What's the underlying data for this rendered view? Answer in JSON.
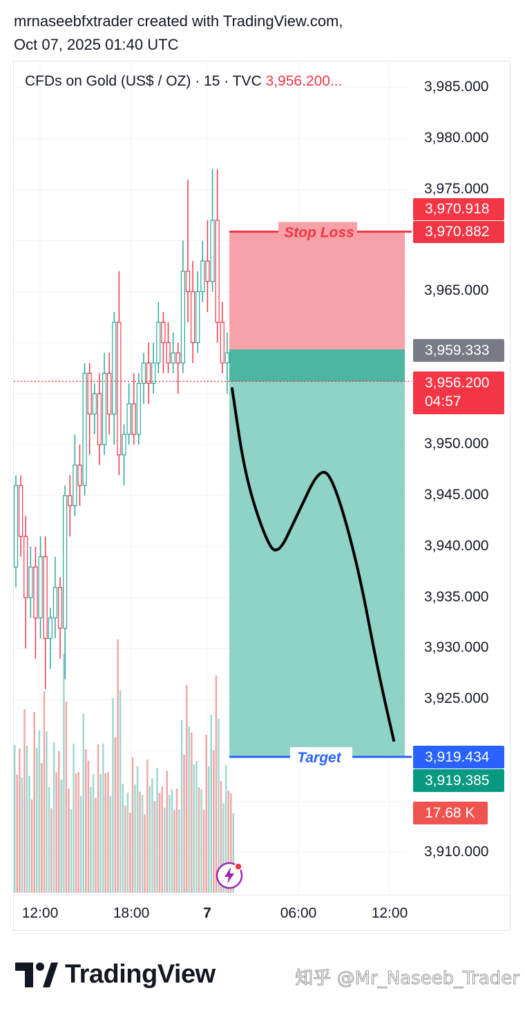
{
  "header": {
    "line1": "mrnaseebfxtrader created with TradingView.com,",
    "line2": "Oct 07, 2025 01:40 UTC"
  },
  "symbol": {
    "name": "CFDs on Gold (US$ / OZ) · 15 · TVC",
    "price": "3,956.200..."
  },
  "y_ticks": [
    "3,985.000",
    "3,980.000",
    "3,975.000",
    "3,965.000",
    "3,950.000",
    "3,945.000",
    "3,940.000",
    "3,935.000",
    "3,930.000",
    "3,925.000",
    "3,910.000"
  ],
  "x_ticks": [
    "12:00",
    "18:00",
    "7",
    "06:00",
    "12:00"
  ],
  "price_tags": {
    "stop_top": "3,970.918",
    "stop": "3,970.882",
    "entry": "3,959.333",
    "current": "3,956.200",
    "countdown": "04:57",
    "target_top": "3,919.434",
    "target": "3,919.385",
    "volume": "17.68 K"
  },
  "position_labels": {
    "stop_loss": "Stop Loss",
    "target": "Target"
  },
  "colors": {
    "up": "#26a69a",
    "down": "#f23645",
    "stop_zone": "#f7a1a8",
    "target_zone": "#8fd3c7",
    "target_line": "#2962ff",
    "entry_tag": "#787b86"
  },
  "brand": {
    "logo_text": "TradingView",
    "watermark": "知乎 @Mr_Naseeb_Trader"
  },
  "chart_data": {
    "type": "candlestick",
    "symbol": "CFDs on Gold (US$ / OZ)",
    "interval": "15",
    "ylim": [
      3905,
      3987
    ],
    "y_scale": "price",
    "x_ticks": [
      "12:00",
      "18:00",
      "7",
      "06:00",
      "12:00"
    ],
    "current_price": 3956.2,
    "position": {
      "type": "short",
      "stop_loss": 3970.882,
      "entry": 3959.333,
      "target": 3919.385
    },
    "projection_path": [
      [
        0,
        3955.5
      ],
      [
        0.08,
        3947
      ],
      [
        0.2,
        3941
      ],
      [
        0.28,
        3939
      ],
      [
        0.4,
        3943
      ],
      [
        0.55,
        3948
      ],
      [
        0.64,
        3946
      ],
      [
        0.78,
        3938
      ],
      [
        0.9,
        3928
      ],
      [
        1.0,
        3921
      ]
    ],
    "candles": [
      [
        3938,
        3946,
        3936,
        3947
      ],
      [
        3946,
        3941,
        3939,
        3947
      ],
      [
        3941,
        3935,
        3930,
        3943
      ],
      [
        3935,
        3938,
        3933,
        3940
      ],
      [
        3938,
        3933,
        3929,
        3940
      ],
      [
        3933,
        3939,
        3931,
        3941
      ],
      [
        3939,
        3931,
        3926,
        3941
      ],
      [
        3931,
        3933,
        3928,
        3934
      ],
      [
        3933,
        3936,
        3931,
        3939
      ],
      [
        3936,
        3932,
        3929,
        3937
      ],
      [
        3932,
        3945,
        3927,
        3946
      ],
      [
        3945,
        3944,
        3941,
        3947
      ],
      [
        3944,
        3948,
        3943,
        3951
      ],
      [
        3948,
        3946,
        3944,
        3950
      ],
      [
        3946,
        3957,
        3945,
        3958
      ],
      [
        3957,
        3953,
        3949,
        3958
      ],
      [
        3953,
        3955,
        3951,
        3956
      ],
      [
        3955,
        3950,
        3948,
        3957
      ],
      [
        3950,
        3957,
        3949,
        3959
      ],
      [
        3957,
        3953,
        3951,
        3959
      ],
      [
        3953,
        3962,
        3950,
        3963
      ],
      [
        3962,
        3949,
        3947,
        3967
      ],
      [
        3949,
        3951,
        3946,
        3952
      ],
      [
        3951,
        3954,
        3950,
        3956
      ],
      [
        3954,
        3951,
        3950,
        3957
      ],
      [
        3951,
        3956,
        3950,
        3957
      ],
      [
        3956,
        3958,
        3954,
        3959
      ],
      [
        3958,
        3956,
        3954,
        3960
      ],
      [
        3956,
        3958,
        3955,
        3960
      ],
      [
        3958,
        3962,
        3957,
        3964
      ],
      [
        3962,
        3960,
        3957,
        3963
      ],
      [
        3960,
        3958,
        3957,
        3962
      ],
      [
        3958,
        3959,
        3957,
        3961
      ],
      [
        3959,
        3958,
        3955,
        3960
      ],
      [
        3958,
        3967,
        3957,
        3970
      ],
      [
        3967,
        3965,
        3962,
        3976
      ],
      [
        3965,
        3960,
        3958,
        3968
      ],
      [
        3960,
        3965,
        3959,
        3967
      ],
      [
        3965,
        3968,
        3964,
        3970
      ],
      [
        3968,
        3966,
        3963,
        3972
      ],
      [
        3966,
        3972,
        3965,
        3977
      ],
      [
        3972,
        3962,
        3960,
        3977
      ],
      [
        3962,
        3958,
        3957,
        3964
      ],
      [
        3958,
        3959,
        3955,
        3961
      ],
      [
        3959,
        3957,
        3956,
        3960
      ]
    ]
  }
}
